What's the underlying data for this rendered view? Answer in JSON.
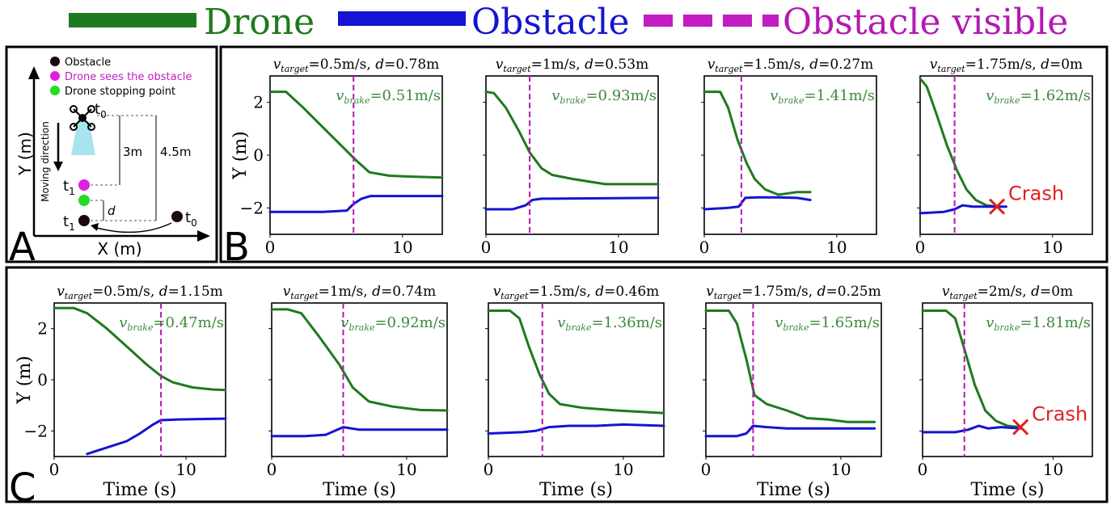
{
  "legend": [
    {
      "label": "Drone",
      "color": "#1e7a1e",
      "style": "solid"
    },
    {
      "label": "Obstacle",
      "color": "#1414d2",
      "style": "solid"
    },
    {
      "label": "Obstacle visible",
      "color": "#b319b3",
      "style": "dashed"
    }
  ],
  "panel_labels": {
    "a": "A",
    "b": "B",
    "c": "C"
  },
  "diagram": {
    "legend_items": [
      {
        "label": "Obstacle",
        "color": "#1a0a0a"
      },
      {
        "label": "Drone sees the obstacle",
        "color": "#e020e0"
      },
      {
        "label": "Drone stopping point",
        "color": "#22dd22"
      }
    ],
    "axis_y": "Y (m)",
    "axis_x": "X (m)",
    "moving_direction": "Moving direction",
    "dist_3m": "3m",
    "dist_45m": "4.5m",
    "d_label": "d",
    "t0": "t",
    "t0_sub": "0",
    "t1": "t",
    "t1_sub": "1"
  },
  "axis_text": {
    "ylabel": "Y (m)",
    "xlabel": "Time (s)"
  },
  "chart_data": [
    {
      "row": "B",
      "type": "line",
      "title_v": "0.5m/s",
      "title_d": "0.78m",
      "vbrake": "0.51m/s",
      "xlim": [
        0,
        13
      ],
      "ylim": [
        -3,
        3
      ],
      "xticks": [
        0,
        10
      ],
      "yticks": [
        2,
        0,
        -2
      ],
      "visible_x": 6.3,
      "crash": "",
      "series": [
        {
          "name": "Drone",
          "x": [
            0,
            1.2,
            2.5,
            4,
            5.5,
            6.5,
            7.5,
            9,
            11,
            13
          ],
          "y": [
            2.4,
            2.4,
            1.8,
            1.05,
            0.3,
            -0.2,
            -0.65,
            -0.78,
            -0.82,
            -0.85
          ]
        },
        {
          "name": "Obstacle",
          "x": [
            0,
            4,
            5.8,
            6.3,
            6.9,
            7.6,
            9,
            13
          ],
          "y": [
            -2.15,
            -2.15,
            -2.1,
            -1.85,
            -1.65,
            -1.55,
            -1.55,
            -1.55
          ]
        }
      ]
    },
    {
      "row": "B",
      "type": "line",
      "title_v": "1m/s",
      "title_d": "0.53m",
      "vbrake": "0.93m/s",
      "xlim": [
        0,
        13
      ],
      "ylim": [
        -3,
        3
      ],
      "xticks": [
        0,
        10
      ],
      "yticks": [
        2,
        0,
        -2
      ],
      "visible_x": 3.3,
      "crash": "",
      "series": [
        {
          "name": "Drone",
          "x": [
            0,
            0.6,
            1.5,
            2.5,
            3.3,
            4.2,
            5,
            6.5,
            9,
            13
          ],
          "y": [
            2.4,
            2.35,
            1.8,
            0.9,
            0.1,
            -0.5,
            -0.75,
            -0.9,
            -1.1,
            -1.1
          ]
        },
        {
          "name": "Obstacle",
          "x": [
            0,
            2,
            3,
            3.5,
            4.2,
            5,
            13
          ],
          "y": [
            -2.05,
            -2.05,
            -1.9,
            -1.7,
            -1.65,
            -1.65,
            -1.62
          ]
        }
      ]
    },
    {
      "row": "B",
      "type": "line",
      "title_v": "1.5m/s",
      "title_d": "0.27m",
      "vbrake": "1.41m/s",
      "xlim": [
        0,
        13
      ],
      "ylim": [
        -3,
        3
      ],
      "xticks": [
        0,
        10
      ],
      "yticks": [
        2,
        0,
        -2
      ],
      "visible_x": 2.8,
      "crash": "",
      "series": [
        {
          "name": "Drone",
          "x": [
            0,
            1.2,
            1.8,
            2.5,
            3.2,
            3.8,
            4.6,
            5.6,
            7,
            8
          ],
          "y": [
            2.4,
            2.4,
            1.8,
            0.6,
            -0.3,
            -0.9,
            -1.3,
            -1.5,
            -1.4,
            -1.4
          ]
        },
        {
          "name": "Obstacle",
          "x": [
            0,
            1.8,
            2.6,
            3.1,
            4,
            5.5,
            7,
            8
          ],
          "y": [
            -2.05,
            -2.0,
            -1.95,
            -1.62,
            -1.6,
            -1.6,
            -1.62,
            -1.7
          ]
        }
      ]
    },
    {
      "row": "B",
      "type": "line",
      "title_v": "1.75m/s",
      "title_d": "0m",
      "vbrake": "1.62m/s",
      "xlim": [
        0,
        13
      ],
      "ylim": [
        -3,
        3
      ],
      "xticks": [
        0,
        10
      ],
      "yticks": [
        2,
        0,
        -2
      ],
      "visible_x": 2.6,
      "crash": "Crash",
      "series": [
        {
          "name": "Drone",
          "x": [
            0,
            0.5,
            1.2,
            2,
            2.8,
            3.5,
            4.2,
            5,
            5.8
          ],
          "y": [
            2.9,
            2.6,
            1.6,
            0.4,
            -0.6,
            -1.3,
            -1.7,
            -1.9,
            -1.95
          ]
        },
        {
          "name": "Obstacle",
          "x": [
            0,
            1.8,
            2.6,
            3.2,
            4,
            5,
            6.5
          ],
          "y": [
            -2.2,
            -2.15,
            -2.05,
            -1.9,
            -1.95,
            -1.95,
            -1.95
          ]
        }
      ]
    },
    {
      "row": "C",
      "type": "line",
      "title_v": "0.5m/s",
      "title_d": "1.15m",
      "vbrake": "0.47m/s",
      "xlim": [
        0,
        13
      ],
      "ylim": [
        -3,
        3
      ],
      "xticks": [
        0,
        10
      ],
      "yticks": [
        2,
        0,
        -2
      ],
      "visible_x": 8.1,
      "crash": "",
      "series": [
        {
          "name": "Drone",
          "x": [
            0,
            1.5,
            2.5,
            4,
            5.5,
            7,
            8.1,
            9,
            10.5,
            12,
            13
          ],
          "y": [
            2.8,
            2.8,
            2.6,
            2.0,
            1.3,
            0.6,
            0.15,
            -0.1,
            -0.3,
            -0.38,
            -0.4
          ]
        },
        {
          "name": "Obstacle",
          "x": [
            2.5,
            4,
            5.5,
            6.5,
            7.5,
            8.1,
            9.5,
            13
          ],
          "y": [
            -2.9,
            -2.65,
            -2.4,
            -2.1,
            -1.75,
            -1.58,
            -1.55,
            -1.52
          ]
        }
      ]
    },
    {
      "row": "C",
      "type": "line",
      "title_v": "1m/s",
      "title_d": "0.74m",
      "vbrake": "0.92m/s",
      "xlim": [
        0,
        13
      ],
      "ylim": [
        -3,
        3
      ],
      "xticks": [
        0,
        10
      ],
      "yticks": [
        2,
        0,
        -2
      ],
      "visible_x": 5.3,
      "crash": "",
      "series": [
        {
          "name": "Drone",
          "x": [
            0,
            1.2,
            2.2,
            3.5,
            5,
            6,
            7.2,
            9,
            11,
            13
          ],
          "y": [
            2.75,
            2.75,
            2.6,
            1.7,
            0.6,
            -0.3,
            -0.85,
            -1.05,
            -1.18,
            -1.2
          ]
        },
        {
          "name": "Obstacle",
          "x": [
            0,
            2.5,
            4,
            5.3,
            6.5,
            8,
            13
          ],
          "y": [
            -2.2,
            -2.2,
            -2.15,
            -1.85,
            -1.95,
            -1.95,
            -1.95
          ]
        }
      ]
    },
    {
      "row": "C",
      "type": "line",
      "title_v": "1.5m/s",
      "title_d": "0.46m",
      "vbrake": "1.36m/s",
      "xlim": [
        0,
        13
      ],
      "ylim": [
        -3,
        3
      ],
      "xticks": [
        0,
        10
      ],
      "yticks": [
        2,
        0,
        -2
      ],
      "visible_x": 4.0,
      "crash": "",
      "series": [
        {
          "name": "Drone",
          "x": [
            0,
            1.6,
            2.3,
            3.0,
            3.8,
            4.5,
            5.3,
            7,
            9.5,
            13
          ],
          "y": [
            2.7,
            2.7,
            2.4,
            1.3,
            0.2,
            -0.55,
            -0.95,
            -1.1,
            -1.2,
            -1.3
          ]
        },
        {
          "name": "Obstacle",
          "x": [
            0,
            2.5,
            3.5,
            4.5,
            6,
            8,
            10,
            13
          ],
          "y": [
            -2.1,
            -2.05,
            -2.0,
            -1.85,
            -1.8,
            -1.8,
            -1.75,
            -1.8
          ]
        }
      ]
    },
    {
      "row": "C",
      "type": "line",
      "title_v": "1.75m/s",
      "title_d": "0.25m",
      "vbrake": "1.65m/s",
      "xlim": [
        0,
        13
      ],
      "ylim": [
        -3,
        3
      ],
      "xticks": [
        0,
        10
      ],
      "yticks": [
        2,
        0,
        -2
      ],
      "visible_x": 3.5,
      "crash": "",
      "series": [
        {
          "name": "Drone",
          "x": [
            0,
            1.7,
            2.3,
            3.0,
            3.6,
            4.5,
            6,
            7.5,
            9,
            10.5,
            12.5
          ],
          "y": [
            2.7,
            2.7,
            2.2,
            0.8,
            -0.6,
            -0.95,
            -1.2,
            -1.5,
            -1.55,
            -1.65,
            -1.65
          ]
        },
        {
          "name": "Obstacle",
          "x": [
            0,
            2.3,
            3.0,
            3.5,
            4.5,
            6,
            12.5
          ],
          "y": [
            -2.2,
            -2.2,
            -2.1,
            -1.8,
            -1.85,
            -1.9,
            -1.9
          ]
        }
      ]
    },
    {
      "row": "C",
      "type": "line",
      "title_v": "2m/s",
      "title_d": "0m",
      "vbrake": "1.81m/s",
      "xlim": [
        0,
        13
      ],
      "ylim": [
        -3,
        3
      ],
      "xticks": [
        0,
        10
      ],
      "yticks": [
        2,
        0,
        -2
      ],
      "visible_x": 3.2,
      "crash": "Crash",
      "series": [
        {
          "name": "Drone",
          "x": [
            0,
            1.8,
            2.5,
            3.2,
            4.0,
            4.8,
            5.6,
            6.5,
            7.5
          ],
          "y": [
            2.7,
            2.7,
            2.4,
            1.2,
            -0.2,
            -1.2,
            -1.6,
            -1.8,
            -1.85
          ]
        },
        {
          "name": "Obstacle",
          "x": [
            0,
            2.5,
            3.5,
            4.3,
            5.0,
            6.0,
            7.5
          ],
          "y": [
            -2.05,
            -2.05,
            -1.95,
            -1.8,
            -1.9,
            -1.85,
            -1.9
          ]
        }
      ]
    }
  ]
}
